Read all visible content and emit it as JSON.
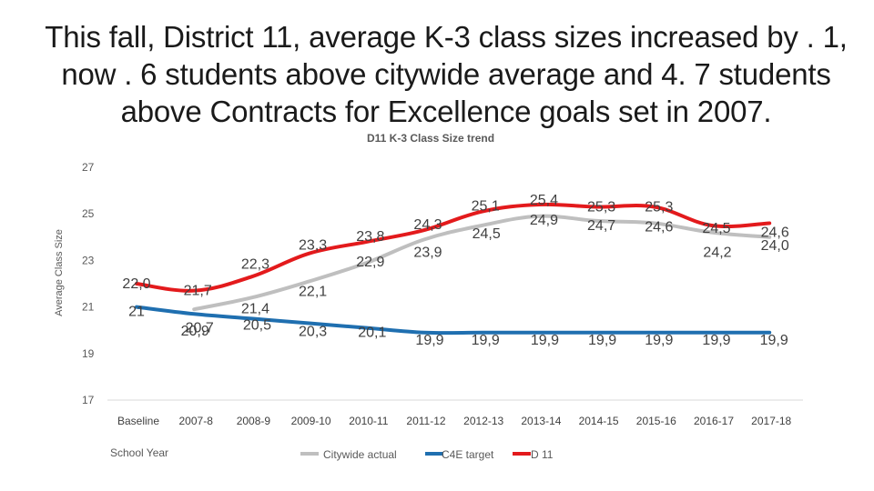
{
  "slide": {
    "title": "This fall, District 11, average K-3 class sizes increased by . 1, now . 6 students above citywide average and 4. 7 students above Contracts for Excellence goals set in 2007."
  },
  "chart_data": {
    "type": "line",
    "title": "D11 K-3 Class Size trend",
    "xlabel": "School Year",
    "ylabel": "Average Class Size",
    "ylim": [
      17,
      27
    ],
    "yticks": [
      "17",
      "19",
      "21",
      "23",
      "25",
      "27"
    ],
    "categories": [
      "Baseline",
      "2007-8",
      "2008-9",
      "2009-10",
      "2010-11",
      "2011-12",
      "2012-13",
      "2013-14",
      "2014-15",
      "2015-16",
      "2016-17",
      "2017-18"
    ],
    "series": [
      {
        "name": "Citywide actual",
        "color": "#bfbfbf",
        "values": [
          null,
          20.9,
          21.4,
          22.1,
          22.9,
          23.9,
          24.5,
          24.9,
          24.7,
          24.6,
          24.2,
          24.0
        ],
        "labels": [
          null,
          "20,9",
          "21,4",
          "22,1",
          "22,9",
          "23,9",
          "24,5",
          "24,9",
          "24,7",
          "24,6",
          "24,2",
          "24,0"
        ]
      },
      {
        "name": "C4E target",
        "color": "#1f6fb0",
        "values": [
          21.0,
          20.7,
          20.5,
          20.3,
          20.1,
          19.9,
          19.9,
          19.9,
          19.9,
          19.9,
          19.9,
          19.9
        ],
        "labels": [
          "21",
          "20,7",
          "20,5",
          "20,3",
          "20,1",
          "19,9",
          "19,9",
          "19,9",
          "19,9",
          "19,9",
          "19,9",
          "19,9"
        ]
      },
      {
        "name": "D 11",
        "color": "#e31a1c",
        "values": [
          22.0,
          21.7,
          22.3,
          23.3,
          23.8,
          24.3,
          25.1,
          25.4,
          25.3,
          25.3,
          24.5,
          24.6
        ],
        "labels": [
          "22,0",
          "21,7",
          "22,3",
          "23,3",
          "23,8",
          "24,3",
          "25,1",
          "25,4",
          "25,3",
          "25,3",
          "24,5",
          "24,6"
        ]
      }
    ]
  }
}
